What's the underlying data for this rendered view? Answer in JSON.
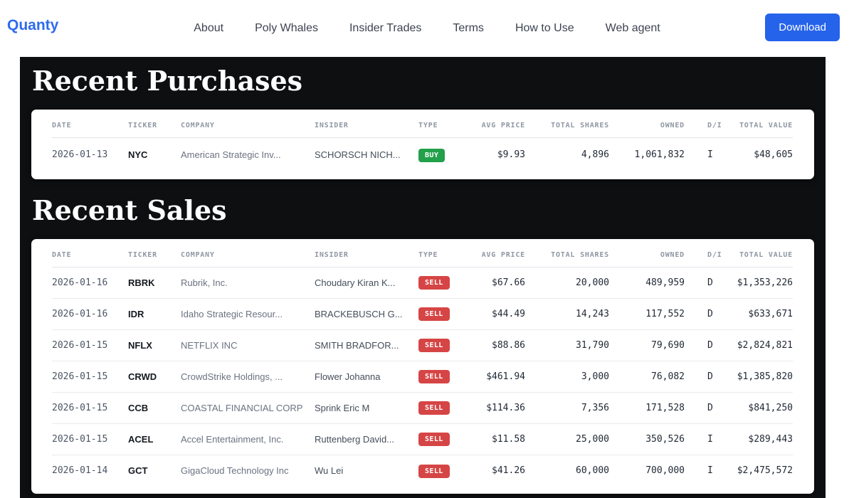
{
  "nav": {
    "logo": "Quanty",
    "links": [
      "About",
      "Poly Whales",
      "Insider Trades",
      "Terms",
      "How to Use",
      "Web agent"
    ],
    "download_label": "Download"
  },
  "colors": {
    "accent": "#2563eb",
    "buy_badge": "#22a04a",
    "sell_badge": "#d64545",
    "panel_background": "#0e0f11"
  },
  "sections": [
    {
      "title": "Recent Purchases",
      "columns": [
        "DATE",
        "TICKER",
        "COMPANY",
        "INSIDER",
        "TYPE",
        "AVG PRICE",
        "TOTAL SHARES",
        "OWNED",
        "D/I",
        "TOTAL VALUE"
      ],
      "rows": [
        {
          "date": "2026-01-13",
          "ticker": "NYC",
          "company": "American Strategic Inv...",
          "insider": "SCHORSCH NICH...",
          "type": "BUY",
          "avg_price": "$9.93",
          "total_shares": "4,896",
          "owned": "1,061,832",
          "di": "I",
          "total_value": "$48,605"
        }
      ]
    },
    {
      "title": "Recent Sales",
      "columns": [
        "DATE",
        "TICKER",
        "COMPANY",
        "INSIDER",
        "TYPE",
        "AVG PRICE",
        "TOTAL SHARES",
        "OWNED",
        "D/I",
        "TOTAL VALUE"
      ],
      "rows": [
        {
          "date": "2026-01-16",
          "ticker": "RBRK",
          "company": "Rubrik, Inc.",
          "insider": "Choudary Kiran K...",
          "type": "SELL",
          "avg_price": "$67.66",
          "total_shares": "20,000",
          "owned": "489,959",
          "di": "D",
          "total_value": "$1,353,226"
        },
        {
          "date": "2026-01-16",
          "ticker": "IDR",
          "company": "Idaho Strategic Resour...",
          "insider": "BRACKEBUSCH G...",
          "type": "SELL",
          "avg_price": "$44.49",
          "total_shares": "14,243",
          "owned": "117,552",
          "di": "D",
          "total_value": "$633,671"
        },
        {
          "date": "2026-01-15",
          "ticker": "NFLX",
          "company": "NETFLIX INC",
          "insider": "SMITH BRADFOR...",
          "type": "SELL",
          "avg_price": "$88.86",
          "total_shares": "31,790",
          "owned": "79,690",
          "di": "D",
          "total_value": "$2,824,821"
        },
        {
          "date": "2026-01-15",
          "ticker": "CRWD",
          "company": "CrowdStrike Holdings, ...",
          "insider": "Flower Johanna",
          "type": "SELL",
          "avg_price": "$461.94",
          "total_shares": "3,000",
          "owned": "76,082",
          "di": "D",
          "total_value": "$1,385,820"
        },
        {
          "date": "2026-01-15",
          "ticker": "CCB",
          "company": "COASTAL FINANCIAL CORP",
          "insider": "Sprink Eric M",
          "type": "SELL",
          "avg_price": "$114.36",
          "total_shares": "7,356",
          "owned": "171,528",
          "di": "D",
          "total_value": "$841,250"
        },
        {
          "date": "2026-01-15",
          "ticker": "ACEL",
          "company": "Accel Entertainment, Inc.",
          "insider": "Ruttenberg David...",
          "type": "SELL",
          "avg_price": "$11.58",
          "total_shares": "25,000",
          "owned": "350,526",
          "di": "I",
          "total_value": "$289,443"
        },
        {
          "date": "2026-01-14",
          "ticker": "GCT",
          "company": "GigaCloud Technology Inc",
          "insider": "Wu Lei",
          "type": "SELL",
          "avg_price": "$41.26",
          "total_shares": "60,000",
          "owned": "700,000",
          "di": "I",
          "total_value": "$2,475,572"
        }
      ]
    }
  ]
}
